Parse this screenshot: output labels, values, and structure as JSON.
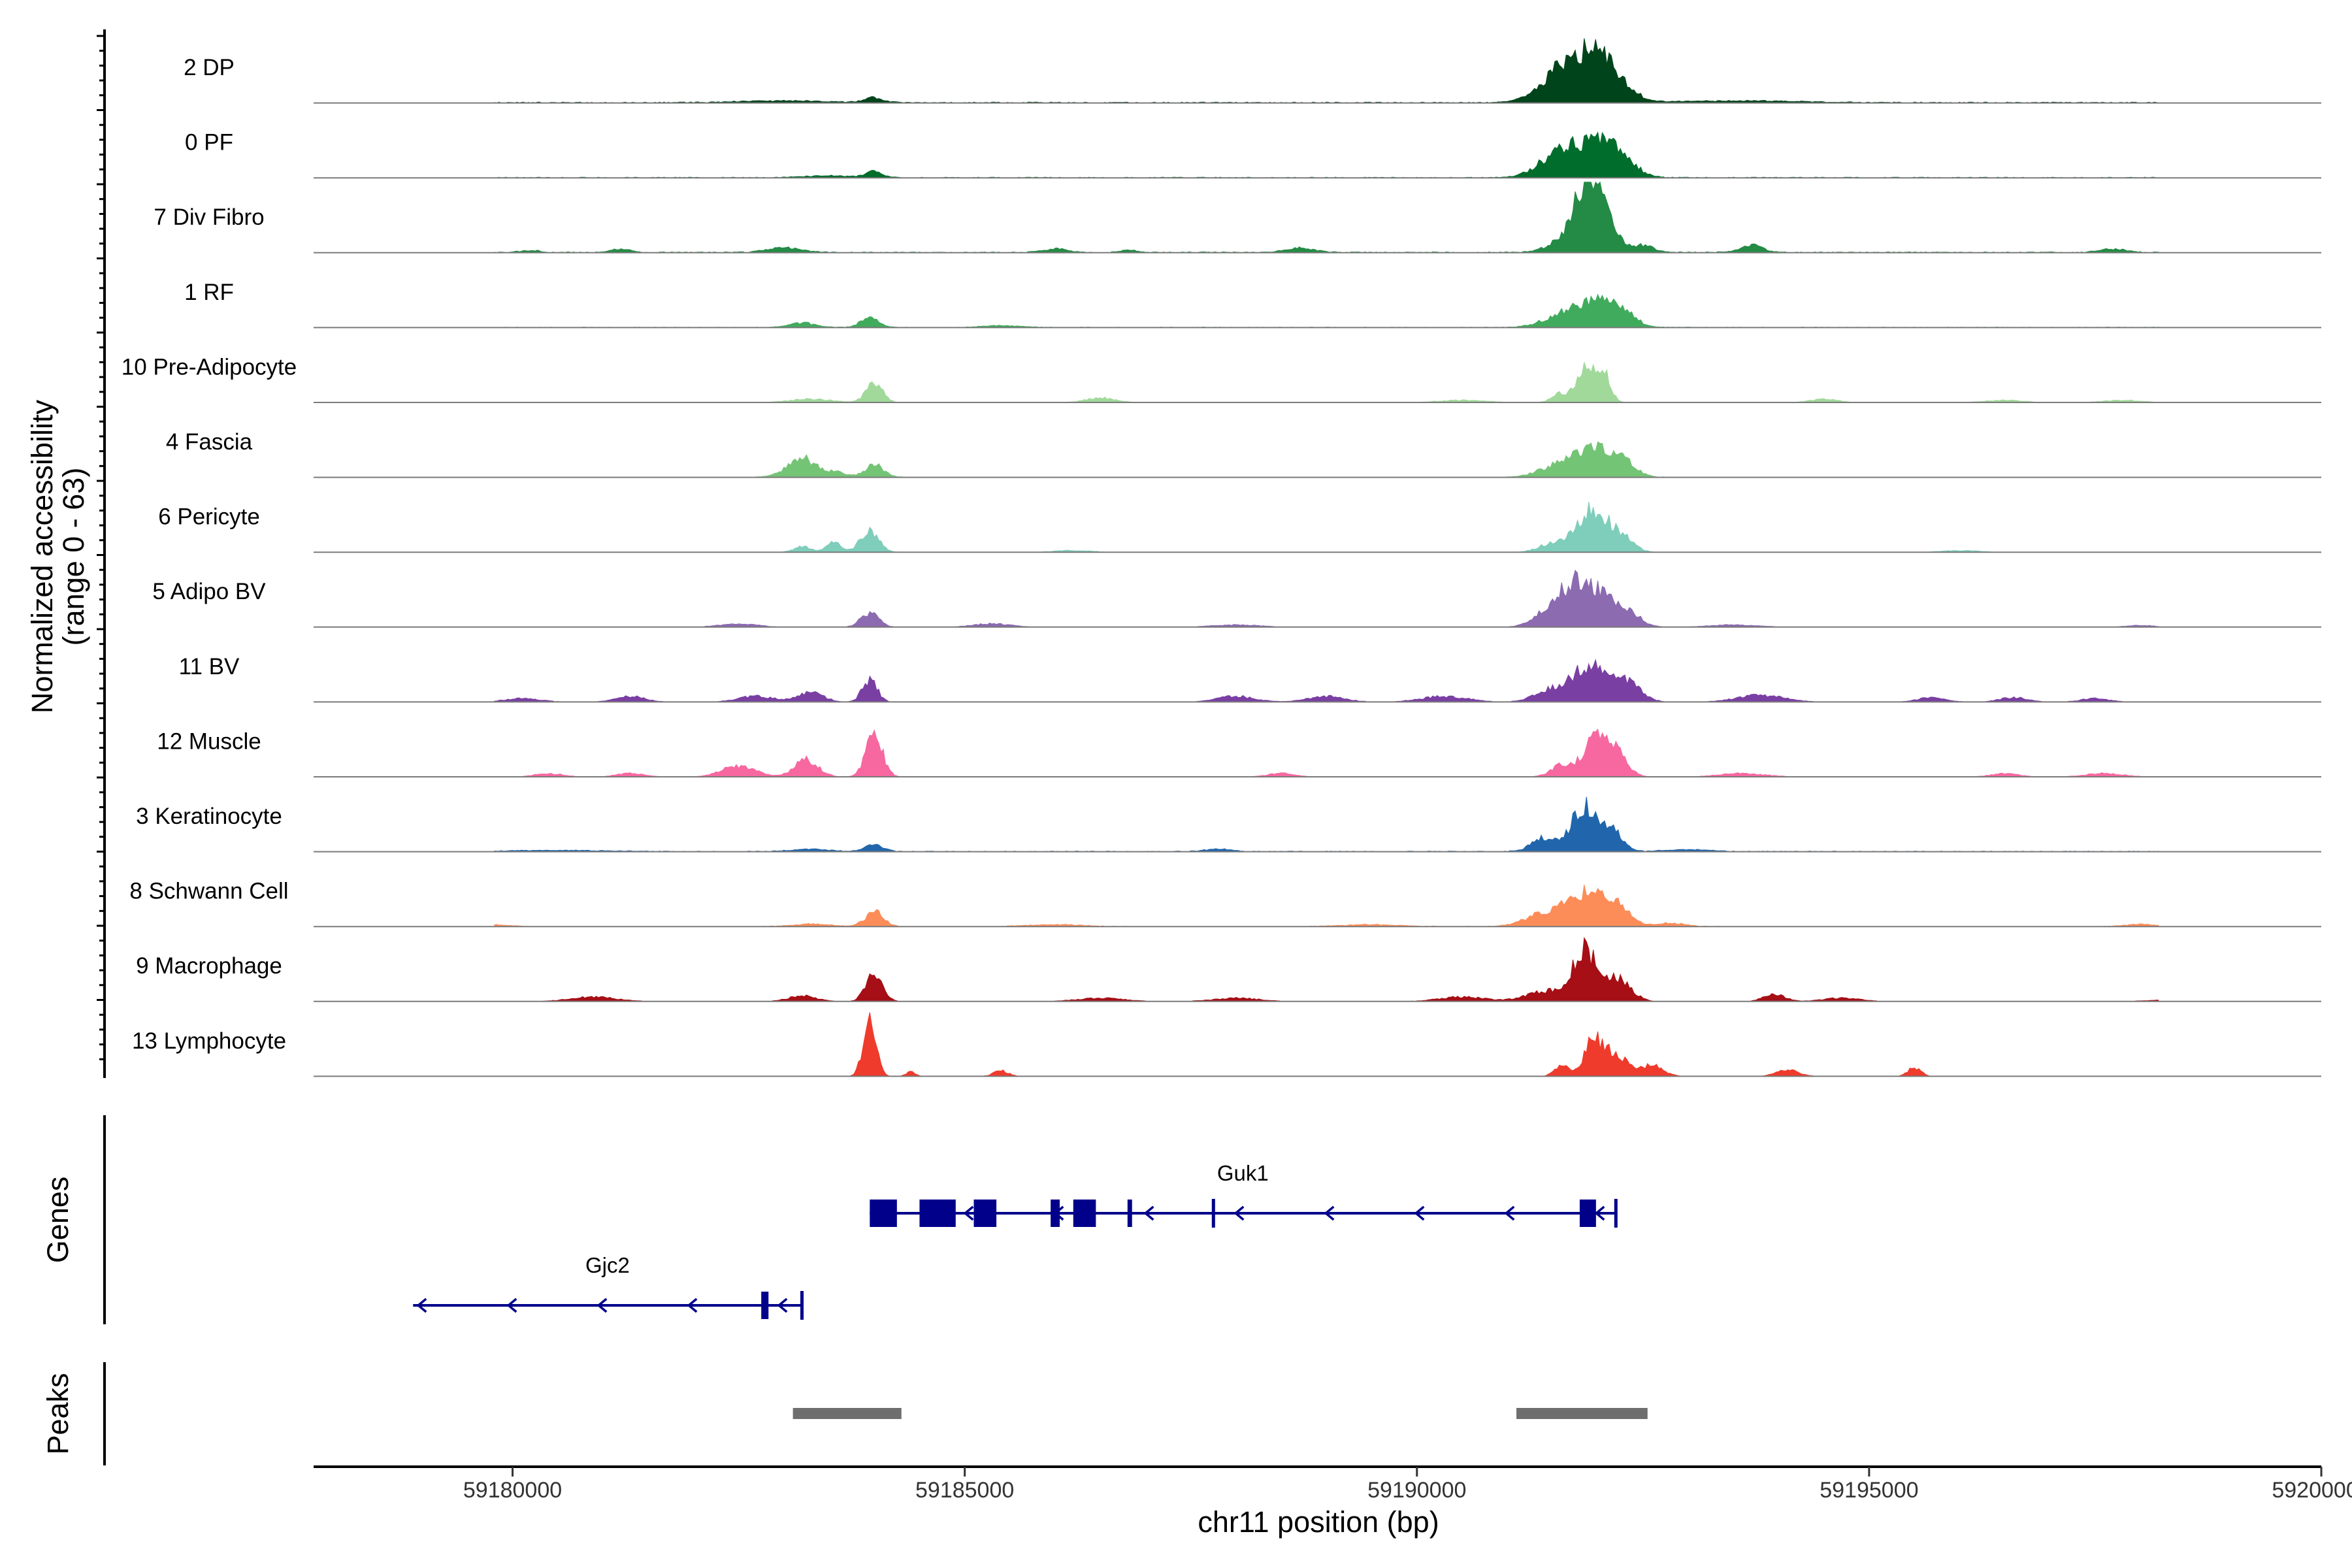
{
  "chart_data": {
    "type": "area",
    "title": "",
    "ylabel_line1": "Normalized accessibility",
    "ylabel_line2": "(range 0 - 63)",
    "xlabel": "chr11 position (bp)",
    "genes_label": "Genes",
    "peaks_label": "Peaks",
    "xlim": [
      59177800,
      59200000
    ],
    "x_ticks": [
      59180000,
      59185000,
      59190000,
      59195000,
      59200000
    ],
    "x_tick_labels": [
      "59180000",
      "59185000",
      "59190000",
      "59195000",
      "59200000"
    ],
    "y_range": [
      0,
      63
    ],
    "tracks": [
      {
        "name": "2 DP",
        "color": "#00441b",
        "peaks": [
          [
            59184000,
            4,
            100
          ],
          [
            59191800,
            30,
            300
          ],
          [
            59192050,
            22,
            220
          ],
          [
            59191550,
            10,
            200
          ],
          [
            59183000,
            1.5,
            500
          ],
          [
            59193500,
            1.5,
            700
          ]
        ],
        "base": 0.8
      },
      {
        "name": "0 PF",
        "color": "#006d2c",
        "peaks": [
          [
            59184000,
            5,
            90
          ],
          [
            59191850,
            27,
            280
          ],
          [
            59192200,
            16,
            180
          ],
          [
            59191500,
            10,
            200
          ],
          [
            59183500,
            1.5,
            300
          ]
        ],
        "base": 0.6
      },
      {
        "name": "7 Div Fibro",
        "color": "#238b45",
        "peaks": [
          [
            59191850,
            52,
            120
          ],
          [
            59192050,
            40,
            130
          ],
          [
            59191600,
            10,
            160
          ],
          [
            59192500,
            6,
            120
          ],
          [
            59193700,
            6,
            120
          ],
          [
            59183000,
            4,
            180
          ],
          [
            59181200,
            3,
            100
          ],
          [
            59180200,
            2,
            100
          ],
          [
            59186000,
            3,
            130
          ],
          [
            59188700,
            4,
            150
          ],
          [
            59197700,
            3,
            140
          ],
          [
            59186800,
            2,
            100
          ]
        ],
        "base": 0.8
      },
      {
        "name": "1 RF",
        "color": "#41ab5d",
        "peaks": [
          [
            59183950,
            8,
            100
          ],
          [
            59183200,
            4,
            140
          ],
          [
            59191900,
            22,
            220
          ],
          [
            59192250,
            14,
            150
          ],
          [
            59191500,
            6,
            180
          ],
          [
            59185400,
            1.5,
            200
          ]
        ],
        "base": 0.5
      },
      {
        "name": "10 Pre-Adipocyte",
        "color": "#a1d99b",
        "peaks": [
          [
            59184000,
            17,
            90
          ],
          [
            59191850,
            33,
            80
          ],
          [
            59192050,
            28,
            80
          ],
          [
            59191600,
            8,
            100
          ],
          [
            59183300,
            3,
            220
          ],
          [
            59186500,
            4,
            160
          ],
          [
            59190500,
            2,
            250
          ],
          [
            59194500,
            3,
            150
          ],
          [
            59196500,
            2,
            200
          ],
          [
            59197800,
            2,
            200
          ]
        ],
        "base": 0
      },
      {
        "name": "4 Fascia",
        "color": "#74c476",
        "peaks": [
          [
            59183200,
            17,
            160
          ],
          [
            59184000,
            11,
            100
          ],
          [
            59191900,
            25,
            200
          ],
          [
            59192250,
            14,
            150
          ],
          [
            59191500,
            8,
            180
          ],
          [
            59183600,
            4,
            100
          ]
        ],
        "base": 0.4
      },
      {
        "name": "6 Pericyte",
        "color": "#7fcdbb",
        "peaks": [
          [
            59183950,
            19,
            100
          ],
          [
            59183550,
            8,
            90
          ],
          [
            59183200,
            5,
            90
          ],
          [
            59191900,
            34,
            150
          ],
          [
            59192200,
            18,
            150
          ],
          [
            59191500,
            8,
            150
          ],
          [
            59186200,
            1.5,
            200
          ],
          [
            59196000,
            1.5,
            200
          ]
        ],
        "base": 0
      },
      {
        "name": "5 Adipo BV",
        "color": "#8c6bb1",
        "peaks": [
          [
            59183950,
            12,
            100
          ],
          [
            59191850,
            40,
            220
          ],
          [
            59191500,
            14,
            180
          ],
          [
            59192300,
            14,
            150
          ],
          [
            59182500,
            3,
            200
          ],
          [
            59185300,
            3,
            200
          ],
          [
            59188000,
            2,
            250
          ],
          [
            59193500,
            2,
            250
          ],
          [
            59198000,
            1.5,
            150
          ]
        ],
        "base": 0
      },
      {
        "name": "11 BV",
        "color": "#7a3fa3",
        "peaks": [
          [
            59183950,
            20,
            80
          ],
          [
            59183300,
            8,
            140
          ],
          [
            59191900,
            32,
            160
          ],
          [
            59192300,
            18,
            160
          ],
          [
            59191500,
            12,
            180
          ],
          [
            59182700,
            5,
            200
          ],
          [
            59181300,
            5,
            160
          ],
          [
            59188000,
            5,
            200
          ],
          [
            59189000,
            5,
            200
          ],
          [
            59190300,
            5,
            250
          ],
          [
            59193800,
            6,
            250
          ],
          [
            59195700,
            4,
            150
          ],
          [
            59196600,
            4,
            150
          ],
          [
            59197500,
            3,
            150
          ],
          [
            59178900,
            2,
            50
          ],
          [
            59180100,
            3,
            200
          ]
        ],
        "base": 0
      },
      {
        "name": "12 Muscle",
        "color": "#f768a1",
        "peaks": [
          [
            59184000,
            38,
            90
          ],
          [
            59183250,
            15,
            130
          ],
          [
            59182500,
            10,
            180
          ],
          [
            59191950,
            32,
            120
          ],
          [
            59192200,
            22,
            120
          ],
          [
            59191600,
            10,
            120
          ],
          [
            59180400,
            3,
            150
          ],
          [
            59181300,
            3,
            150
          ],
          [
            59188500,
            3,
            150
          ],
          [
            59193600,
            3,
            250
          ],
          [
            59196500,
            3,
            150
          ],
          [
            59197600,
            3,
            200
          ]
        ],
        "base": 0
      },
      {
        "name": "3 Keratinocyte",
        "color": "#2166ac",
        "peaks": [
          [
            59191850,
            40,
            140
          ],
          [
            59192150,
            18,
            120
          ],
          [
            59191400,
            12,
            130
          ],
          [
            59184000,
            6,
            100
          ],
          [
            59183300,
            2,
            200
          ],
          [
            59187800,
            2,
            150
          ],
          [
            59193000,
            1.5,
            250
          ],
          [
            59180500,
            1,
            500
          ]
        ],
        "base": 0.6
      },
      {
        "name": "8 Schwann Cell",
        "color": "#fc8d59",
        "peaks": [
          [
            59184000,
            13,
            100
          ],
          [
            59191850,
            28,
            200
          ],
          [
            59192200,
            16,
            150
          ],
          [
            59191400,
            11,
            200
          ],
          [
            59183300,
            2,
            200
          ],
          [
            59192800,
            3,
            150
          ],
          [
            59179700,
            2,
            200
          ],
          [
            59186000,
            1.5,
            300
          ],
          [
            59189500,
            1.5,
            300
          ],
          [
            59198000,
            2,
            150
          ]
        ],
        "base": 0.4
      },
      {
        "name": "9 Macrophage",
        "color": "#a50f15",
        "peaks": [
          [
            59184000,
            26,
            90
          ],
          [
            59191850,
            42,
            120
          ],
          [
            59192200,
            22,
            150
          ],
          [
            59191500,
            10,
            250
          ],
          [
            59183200,
            5,
            150
          ],
          [
            59180900,
            4,
            250
          ],
          [
            59186500,
            3,
            250
          ],
          [
            59188000,
            3,
            250
          ],
          [
            59190500,
            4,
            250
          ],
          [
            59193950,
            6,
            120
          ],
          [
            59194700,
            3,
            200
          ],
          [
            59198500,
            2,
            300
          ]
        ],
        "base": 0
      },
      {
        "name": "13 Lymphocyte",
        "color": "#ef3b2c",
        "peaks": [
          [
            59183950,
            52,
            70
          ],
          [
            59191950,
            32,
            100
          ],
          [
            59192200,
            20,
            120
          ],
          [
            59191600,
            10,
            80
          ],
          [
            59192600,
            10,
            120
          ],
          [
            59185400,
            5,
            80
          ],
          [
            59194100,
            6,
            120
          ],
          [
            59195500,
            8,
            70
          ],
          [
            59184400,
            4,
            50
          ],
          [
            59178900,
            4,
            40
          ]
        ],
        "base": 0
      }
    ],
    "genes": [
      {
        "name": "Guk1",
        "start": 59183950,
        "end": 59192200,
        "strand": "-",
        "exons": [
          [
            59183950,
            59184250
          ],
          [
            59184500,
            59184900
          ],
          [
            59185100,
            59185350
          ],
          [
            59185950,
            59186050
          ],
          [
            59186200,
            59186450
          ],
          [
            59186800,
            59186850
          ],
          [
            59191800,
            59191980
          ]
        ],
        "ticks": [
          59192200,
          59187750
        ]
      },
      {
        "name": "Gjc2",
        "start": 59178900,
        "end": 59183200,
        "strand": "-",
        "exons": [
          [
            59182750,
            59182830
          ]
        ],
        "ticks": [
          59183200
        ]
      }
    ],
    "peak_regions": [
      [
        59183100,
        59184300
      ],
      [
        59191100,
        59192550
      ]
    ]
  }
}
